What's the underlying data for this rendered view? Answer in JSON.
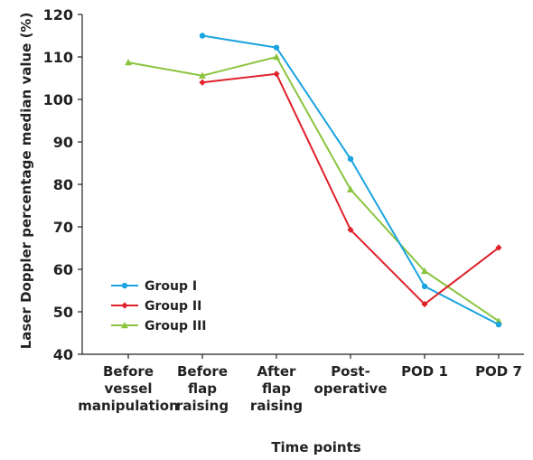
{
  "chart_data": {
    "type": "line",
    "categories": [
      [
        "Before",
        "vessel",
        "manipulation"
      ],
      [
        "Before",
        "flap",
        "raising"
      ],
      [
        "After",
        "flap",
        "raising"
      ],
      [
        "Post-",
        "operative"
      ],
      [
        "POD 1"
      ],
      [
        "POD 7"
      ]
    ],
    "xlabel": "Time points",
    "ylabel": "Laser Doppler percentage median value (%)",
    "ylim": [
      40,
      120
    ],
    "yticks": [
      40,
      50,
      60,
      70,
      80,
      90,
      100,
      110,
      120
    ],
    "grid": false,
    "legend": "bottom-left",
    "series": [
      {
        "name": "Group I",
        "color": "#1aa3e0",
        "marker": "circle",
        "values": [
          null,
          115,
          112.2,
          86,
          56,
          47
        ]
      },
      {
        "name": "Group II",
        "color": "#e0202a",
        "marker": "diamond",
        "values": [
          null,
          104,
          106,
          69.3,
          51.8,
          65.1
        ]
      },
      {
        "name": "Group III",
        "color": "#8ac43f",
        "marker": "triangle",
        "values": [
          108.7,
          105.6,
          110,
          78.8,
          59.6,
          47.8
        ]
      }
    ]
  }
}
